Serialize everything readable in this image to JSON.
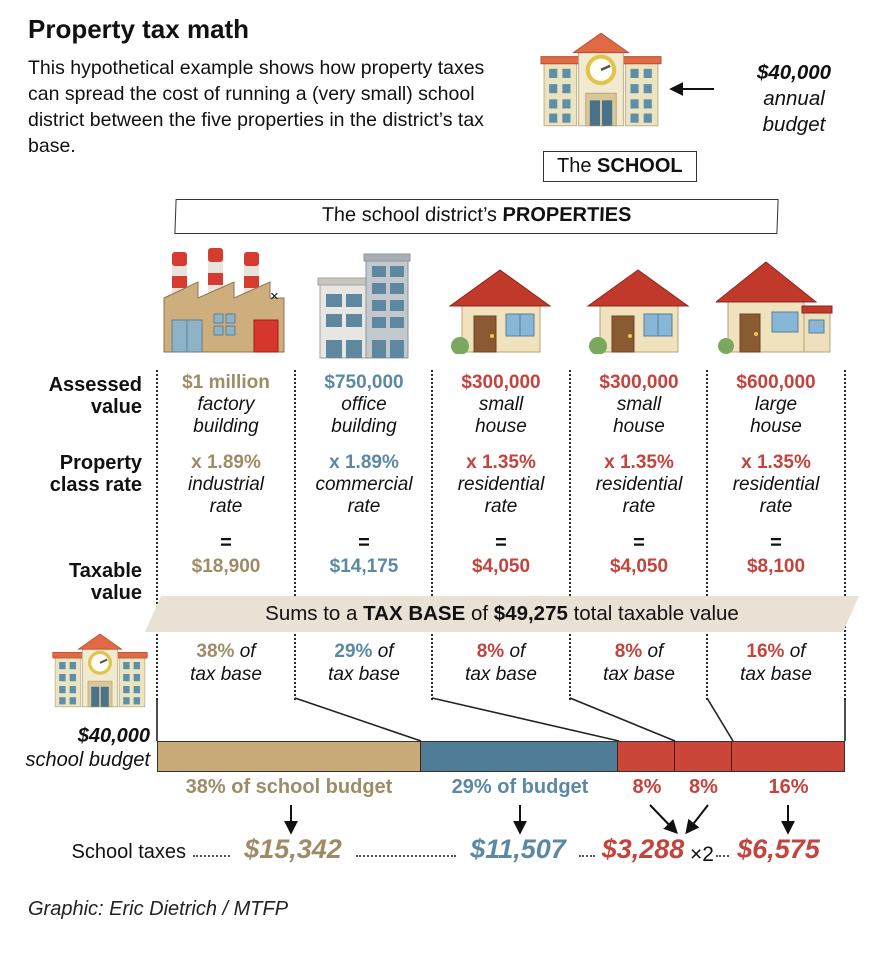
{
  "header": {
    "title": "Property tax math",
    "intro": "This hypothetical example shows how property taxes can spread the cost of running a (very small) school district between the five properties in the district’s tax base.",
    "budget_note": [
      "$40,000",
      "annual",
      "budget"
    ],
    "school_label": {
      "pre": "The ",
      "bold": "SCHOOL"
    }
  },
  "properties_banner": {
    "pre": "The school district’s ",
    "bold": "PROPERTIES"
  },
  "annotations": {
    "factory_mark": "×"
  },
  "row_labels": {
    "assessed": [
      "Assessed",
      "value"
    ],
    "class_rate": [
      "Property",
      "class rate"
    ],
    "taxable": [
      "Taxable",
      "value"
    ]
  },
  "columns": [
    {
      "color": "#9d8c66",
      "value": "$1 million",
      "desc": [
        "factory",
        "building"
      ],
      "rate": "x 1.89%",
      "rate_desc": [
        "industrial",
        "rate"
      ],
      "equals": "=",
      "taxable": "$18,900",
      "share_pct": "38%",
      "share_of": " of",
      "share_base": "tax base"
    },
    {
      "color": "#5b89a5",
      "value": "$750,000",
      "desc": [
        "office",
        "building"
      ],
      "rate": "x 1.89%",
      "rate_desc": [
        "commercial",
        "rate"
      ],
      "equals": "=",
      "taxable": "$14,175",
      "share_pct": "29%",
      "share_of": " of",
      "share_base": "tax base"
    },
    {
      "color": "#c4433c",
      "value": "$300,000",
      "desc": [
        "small",
        "house"
      ],
      "rate": "x 1.35%",
      "rate_desc": [
        "residential",
        "rate"
      ],
      "equals": "=",
      "taxable": "$4,050",
      "share_pct": "8%",
      "share_of": " of",
      "share_base": "tax base"
    },
    {
      "color": "#c4433c",
      "value": "$300,000",
      "desc": [
        "small",
        "house"
      ],
      "rate": "x 1.35%",
      "rate_desc": [
        "residential",
        "rate"
      ],
      "equals": "=",
      "taxable": "$4,050",
      "share_pct": "8%",
      "share_of": " of",
      "share_base": "tax base"
    },
    {
      "color": "#c4433c",
      "value": "$600,000",
      "desc": [
        "large",
        "house"
      ],
      "rate": "x 1.35%",
      "rate_desc": [
        "residential",
        "rate"
      ],
      "equals": "=",
      "taxable": "$8,100",
      "share_pct": "16%",
      "share_of": " of",
      "share_base": "tax base"
    }
  ],
  "tax_base_banner": {
    "pre": "Sums to a ",
    "bold1": "TAX BASE",
    "mid": " of ",
    "bold2": "$49,275",
    "post": " total taxable value"
  },
  "school_budget": {
    "line1": "$40,000",
    "line2": "school budget"
  },
  "bottom": {
    "budget_labels": [
      "38% of school budget",
      "29% of budget",
      "8%",
      "8%",
      "16%"
    ],
    "taxes_row_label": "School taxes",
    "taxes": [
      "$15,342",
      "$11,507",
      "$3,288",
      "$6,575"
    ],
    "times_two": "×2"
  },
  "credit": "Graphic: Eric Dietrich / MTFP",
  "icons": {
    "school": "school-building-icon",
    "factory": "factory-icon",
    "office": "office-building-icon",
    "house": "house-icon",
    "large_house": "large-house-icon",
    "arrow_left": "left-arrow-icon",
    "arrow_down": "down-arrow-icon"
  },
  "colors": {
    "factory_tan_text": "#9d8c66",
    "office_blue_text": "#5b89a5",
    "house_red_text": "#c4433c",
    "bar_tan": "#c9aa79",
    "bar_blue": "#4f7c97",
    "bar_red": "#cc4539",
    "tax_base_banner_bg": "#e9e1d3"
  },
  "chart_data": {
    "type": "bar",
    "title": "Share of school budget paid by each property (proportional bar)",
    "categories": [
      "$1 million factory building",
      "$750,000 office building",
      "$300,000 small house",
      "$300,000 small house",
      "$600,000 large house"
    ],
    "series": [
      {
        "name": "assessed_value_usd",
        "values": [
          1000000,
          750000,
          300000,
          300000,
          600000
        ]
      },
      {
        "name": "property_class_rate_pct",
        "values": [
          1.89,
          1.89,
          1.35,
          1.35,
          1.35
        ]
      },
      {
        "name": "taxable_value_usd",
        "values": [
          18900,
          14175,
          4050,
          4050,
          8100
        ]
      },
      {
        "name": "share_of_tax_base_pct",
        "values": [
          38,
          29,
          8,
          8,
          16
        ]
      },
      {
        "name": "school_taxes_usd",
        "values": [
          15342,
          11507,
          3288,
          3288,
          6575
        ]
      }
    ],
    "totals": {
      "tax_base_usd": 49275,
      "school_budget_usd": 40000
    },
    "segments": [
      {
        "key": "factory",
        "share": 38.4,
        "color": "#c9aa79"
      },
      {
        "key": "office",
        "share": 28.8,
        "color": "#4f7c97"
      },
      {
        "key": "house-1",
        "share": 8.2,
        "color": "#cc4539"
      },
      {
        "key": "house-2",
        "share": 8.2,
        "color": "#cc4539"
      },
      {
        "key": "large-house",
        "share": 16.4,
        "color": "#cc4539"
      }
    ]
  }
}
